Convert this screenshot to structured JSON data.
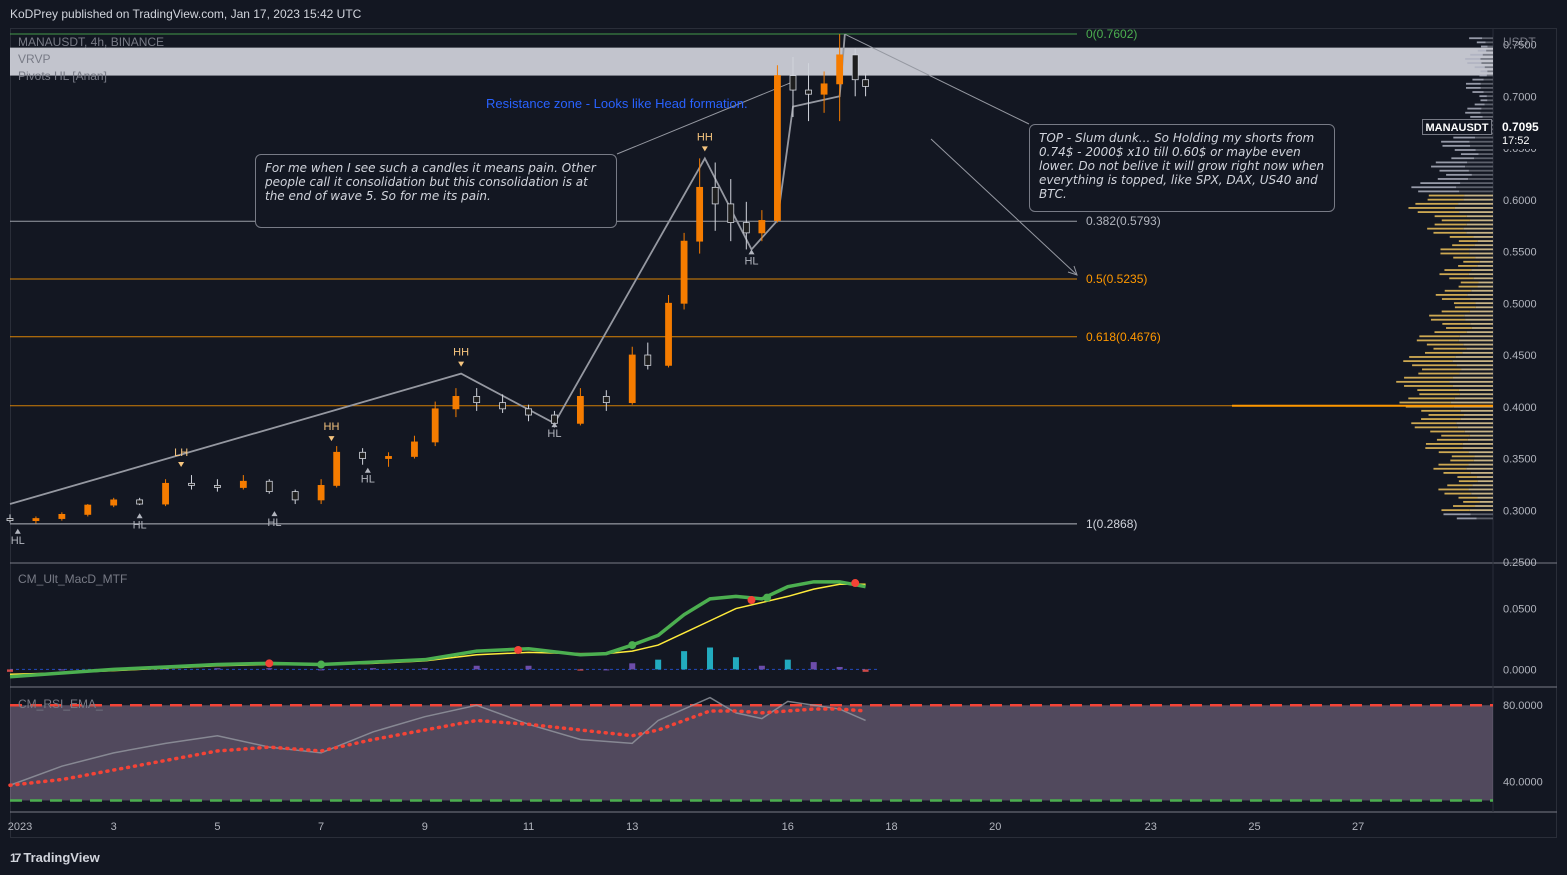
{
  "header": {
    "published": "KoDPrey published on TradingView.com, Jan 17, 2023 15:42 UTC"
  },
  "brand": {
    "logo_mark": "17",
    "name": "TradingView"
  },
  "legend": {
    "symbol": "MANAUSDT, 4h, BINANCE",
    "indicator1": "VRVP",
    "indicator2": "Pivots HL [Anan]"
  },
  "price_axis": {
    "currency": "USDT",
    "ticks": [
      "0.7500",
      "0.7000",
      "0.6500",
      "0.6000",
      "0.5500",
      "0.5000",
      "0.4500",
      "0.4000",
      "0.3500",
      "0.3000",
      "0.2500"
    ]
  },
  "current": {
    "symbol": "MANAUSDT",
    "price": "0.7095",
    "countdown": "17:52"
  },
  "fib_levels": [
    {
      "label": "0(0.7602)",
      "value": 0.7602,
      "color": "#4caf50"
    },
    {
      "label": "0.382(0.5793)",
      "value": 0.5793,
      "color": "#b2b5be"
    },
    {
      "label": "0.5(0.5235)",
      "value": 0.5235,
      "color": "#ff9800"
    },
    {
      "label": "0.618(0.4676)",
      "value": 0.4676,
      "color": "#ff9800"
    },
    {
      "label": "1(0.2868)",
      "value": 0.2868,
      "color": "#d1d4dc"
    }
  ],
  "annotations": {
    "resistance": "Resistance zone - Looks like Head formation.",
    "note_left": "For me when I see such a candles it means pain. Other people call it consolidation but this consolidation is at the end of wave 5. So for me its pain.",
    "note_right": "TOP - Slum dunk... So Holding my shorts from 0.74$ - 2000$ x10 till 0.60$ or maybe even lower. Do not belive it will grow right now when everything is topped, like SPX, DAX, US40 and BTC."
  },
  "pivot_tags": [
    {
      "text": "HL",
      "color": "#b2b5be",
      "date": 1.15,
      "value": 0.285,
      "pos": "below"
    },
    {
      "text": "HL",
      "color": "#b2b5be",
      "date": 3.5,
      "value": 0.3,
      "pos": "below"
    },
    {
      "text": "LH",
      "color": "#f6c57f",
      "date": 4.3,
      "value": 0.335,
      "pos": "above"
    },
    {
      "text": "HL",
      "color": "#b2b5be",
      "date": 6.1,
      "value": 0.302,
      "pos": "below"
    },
    {
      "text": "HH",
      "color": "#f6c57f",
      "date": 7.2,
      "value": 0.36,
      "pos": "above"
    },
    {
      "text": "HL",
      "color": "#b2b5be",
      "date": 7.9,
      "value": 0.344,
      "pos": "below"
    },
    {
      "text": "HH",
      "color": "#f6c57f",
      "date": 9.7,
      "value": 0.432,
      "pos": "above"
    },
    {
      "text": "HL",
      "color": "#b2b5be",
      "date": 11.5,
      "value": 0.388,
      "pos": "below"
    },
    {
      "text": "HH",
      "color": "#f6c57f",
      "date": 14.4,
      "value": 0.64,
      "pos": "above"
    },
    {
      "text": "HL",
      "color": "#b2b5be",
      "date": 15.3,
      "value": 0.555,
      "pos": "below"
    }
  ],
  "macd_pane": {
    "title": "CM_Ult_MacD_MTF",
    "ticks": [
      "0.0500",
      "0.0000"
    ]
  },
  "rsi_pane": {
    "title": "CM_RSI_EMA_",
    "ticks": [
      "80.0000",
      "40.0000"
    ]
  },
  "time_axis": {
    "labels": [
      "2023",
      "3",
      "5",
      "7",
      "9",
      "11",
      "13",
      "16",
      "18",
      "20",
      "23",
      "25",
      "27"
    ]
  },
  "chart_data": {
    "type": "candlestick",
    "title": "MANAUSDT, 4h, BINANCE",
    "ylabel": "USDT",
    "ylim": [
      0.25,
      0.765
    ],
    "x_unit": "day of January 2023",
    "xlim": [
      1,
      29.6
    ],
    "series": [
      {
        "name": "MANAUSDT 4h",
        "ohlc": [
          [
            1.0,
            0.292,
            0.296,
            0.288,
            0.29
          ],
          [
            1.5,
            0.29,
            0.294,
            0.287,
            0.292
          ],
          [
            2.0,
            0.292,
            0.298,
            0.29,
            0.296
          ],
          [
            2.5,
            0.296,
            0.306,
            0.294,
            0.305
          ],
          [
            3.0,
            0.305,
            0.312,
            0.303,
            0.31
          ],
          [
            3.5,
            0.31,
            0.312,
            0.305,
            0.306
          ],
          [
            4.0,
            0.306,
            0.33,
            0.304,
            0.326
          ],
          [
            4.5,
            0.326,
            0.334,
            0.32,
            0.324
          ],
          [
            5.0,
            0.324,
            0.33,
            0.318,
            0.322
          ],
          [
            5.5,
            0.322,
            0.334,
            0.32,
            0.328
          ],
          [
            6.0,
            0.328,
            0.33,
            0.316,
            0.318
          ],
          [
            6.5,
            0.318,
            0.32,
            0.306,
            0.31
          ],
          [
            7.0,
            0.31,
            0.33,
            0.306,
            0.324
          ],
          [
            7.3,
            0.324,
            0.362,
            0.322,
            0.356
          ],
          [
            7.8,
            0.356,
            0.36,
            0.344,
            0.35
          ],
          [
            8.3,
            0.35,
            0.356,
            0.342,
            0.352
          ],
          [
            8.8,
            0.352,
            0.372,
            0.35,
            0.366
          ],
          [
            9.2,
            0.366,
            0.405,
            0.362,
            0.398
          ],
          [
            9.6,
            0.398,
            0.418,
            0.39,
            0.41
          ],
          [
            10.0,
            0.41,
            0.418,
            0.396,
            0.404
          ],
          [
            10.5,
            0.404,
            0.412,
            0.394,
            0.398
          ],
          [
            11.0,
            0.398,
            0.402,
            0.386,
            0.392
          ],
          [
            11.5,
            0.392,
            0.396,
            0.38,
            0.384
          ],
          [
            12.0,
            0.384,
            0.418,
            0.382,
            0.41
          ],
          [
            12.5,
            0.41,
            0.416,
            0.396,
            0.404
          ],
          [
            13.0,
            0.404,
            0.458,
            0.402,
            0.45
          ],
          [
            13.3,
            0.45,
            0.462,
            0.436,
            0.44
          ],
          [
            13.7,
            0.44,
            0.508,
            0.438,
            0.5
          ],
          [
            14.0,
            0.5,
            0.568,
            0.494,
            0.56
          ],
          [
            14.3,
            0.56,
            0.64,
            0.548,
            0.612
          ],
          [
            14.6,
            0.612,
            0.636,
            0.57,
            0.596
          ],
          [
            14.9,
            0.596,
            0.62,
            0.56,
            0.578
          ],
          [
            15.2,
            0.578,
            0.598,
            0.552,
            0.568
          ],
          [
            15.5,
            0.568,
            0.59,
            0.56,
            0.58
          ],
          [
            15.8,
            0.58,
            0.73,
            0.578,
            0.72
          ],
          [
            16.1,
            0.72,
            0.738,
            0.68,
            0.706
          ],
          [
            16.4,
            0.706,
            0.732,
            0.676,
            0.702
          ],
          [
            16.7,
            0.702,
            0.724,
            0.684,
            0.712
          ],
          [
            17.0,
            0.712,
            0.76,
            0.676,
            0.74
          ],
          [
            17.3,
            0.74,
            0.746,
            0.7,
            0.716
          ],
          [
            17.5,
            0.716,
            0.722,
            0.7,
            0.7095
          ]
        ]
      }
    ],
    "volume_profile": {
      "poc_price": 0.401,
      "value_area": [
        0.3,
        0.605
      ]
    },
    "macd": {
      "title": "CM_Ult_MacD_MTF",
      "ylim": [
        -0.012,
        0.085
      ],
      "x": [
        1,
        2,
        3,
        4,
        5,
        6,
        7,
        8,
        9,
        10,
        11,
        12,
        12.5,
        13,
        13.5,
        14,
        14.5,
        15,
        15.5,
        16,
        16.5,
        17,
        17.5
      ],
      "macd": [
        -0.006,
        -0.003,
        0.0,
        0.002,
        0.004,
        0.005,
        0.004,
        0.006,
        0.008,
        0.015,
        0.017,
        0.012,
        0.013,
        0.02,
        0.028,
        0.045,
        0.058,
        0.06,
        0.058,
        0.068,
        0.072,
        0.072,
        0.068
      ],
      "signal": [
        -0.004,
        -0.003,
        -0.001,
        0.001,
        0.003,
        0.004,
        0.004,
        0.005,
        0.007,
        0.012,
        0.014,
        0.013,
        0.013,
        0.015,
        0.02,
        0.03,
        0.04,
        0.05,
        0.055,
        0.06,
        0.066,
        0.07,
        0.07
      ],
      "histogram": [
        -0.002,
        0,
        0.001,
        0.001,
        0.001,
        0.001,
        0,
        0.001,
        0.001,
        0.003,
        0.003,
        -0.001,
        0,
        0.005,
        0.008,
        0.015,
        0.018,
        0.01,
        0.003,
        0.008,
        0.006,
        0.002,
        -0.002
      ]
    },
    "rsi": {
      "title": "CM_RSI_EMA_",
      "ylim": [
        25,
        88
      ],
      "overbought": 80,
      "oversold": 30,
      "x": [
        1,
        2,
        3,
        4,
        5,
        6,
        7,
        8,
        9,
        10,
        11,
        12,
        13,
        13.5,
        14,
        14.5,
        15,
        15.5,
        16,
        16.5,
        17,
        17.5
      ],
      "rsi": [
        38,
        48,
        55,
        60,
        64,
        58,
        55,
        66,
        74,
        80,
        70,
        62,
        60,
        72,
        78,
        84,
        76,
        73,
        82,
        80,
        78,
        72
      ],
      "ema": [
        38,
        41,
        46,
        51,
        56,
        58,
        56,
        62,
        67,
        72,
        70,
        67,
        64,
        67,
        72,
        77,
        77,
        76,
        77,
        78,
        78,
        77
      ]
    }
  }
}
